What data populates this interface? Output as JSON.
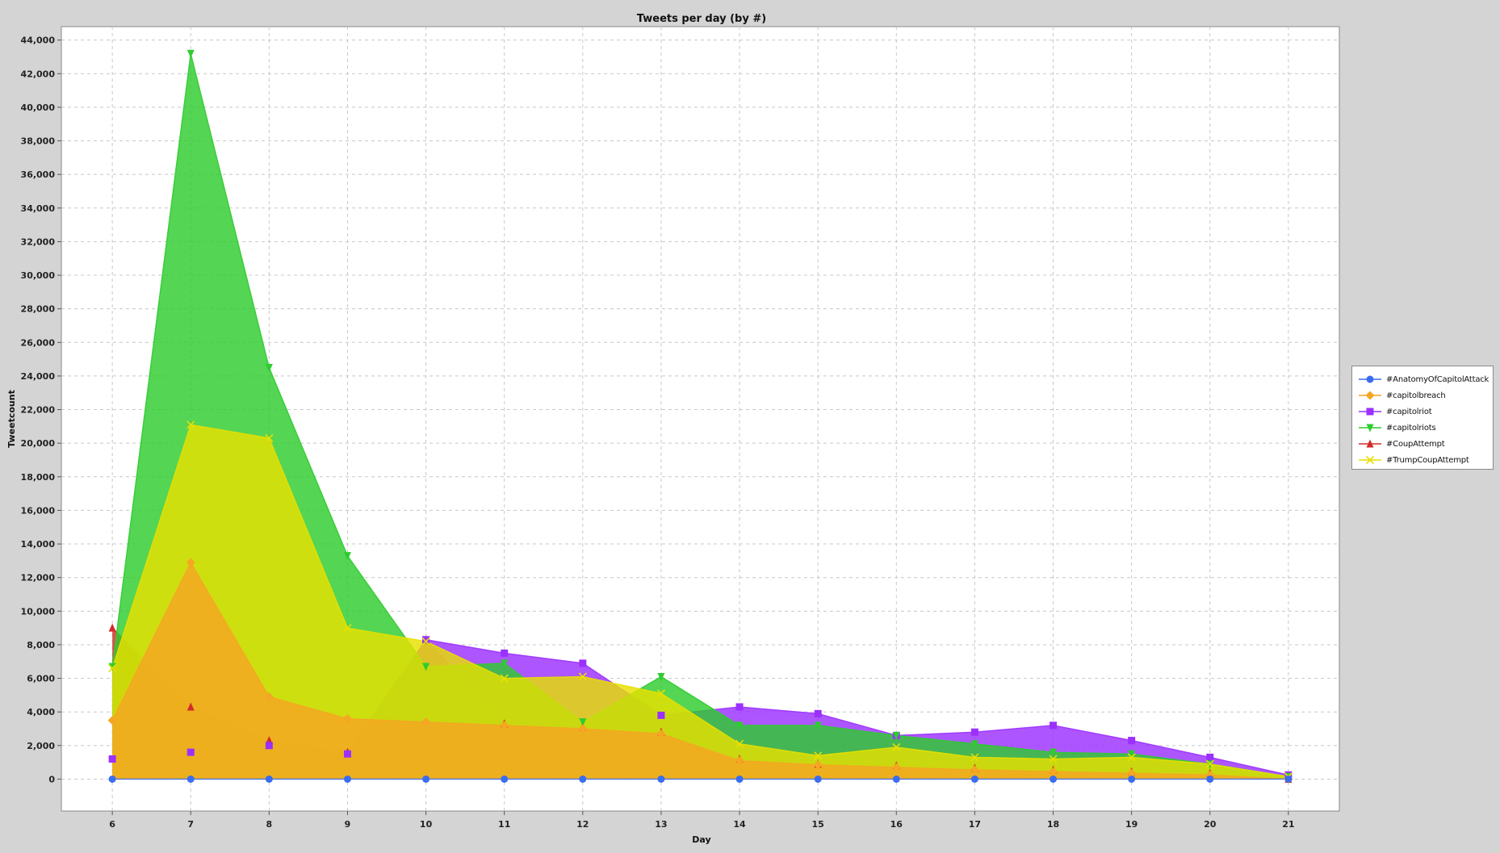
{
  "chart_data": {
    "type": "area",
    "title": "Tweets per day (by #)",
    "xlabel": "Day",
    "ylabel": "Tweetcount",
    "x": [
      6,
      7,
      8,
      9,
      10,
      11,
      12,
      13,
      14,
      15,
      16,
      17,
      18,
      19,
      20,
      21
    ],
    "xlim": [
      5.35,
      21.65
    ],
    "ylim": [
      -1900,
      44800
    ],
    "yticks": [
      0,
      2000,
      4000,
      6000,
      8000,
      10000,
      12000,
      14000,
      16000,
      18000,
      20000,
      22000,
      24000,
      26000,
      28000,
      30000,
      32000,
      34000,
      36000,
      38000,
      40000,
      42000,
      44000
    ],
    "ytick_labels": [
      "0",
      "2,000",
      "4,000",
      "6,000",
      "8,000",
      "10,000",
      "12,000",
      "14,000",
      "16,000",
      "18,000",
      "20,000",
      "22,000",
      "24,000",
      "26,000",
      "28,000",
      "30,000",
      "32,000",
      "34,000",
      "36,000",
      "38,000",
      "40,000",
      "42,000",
      "44,000"
    ],
    "xtick_labels": [
      "6",
      "7",
      "8",
      "9",
      "10",
      "11",
      "12",
      "13",
      "14",
      "15",
      "16",
      "17",
      "18",
      "19",
      "20",
      "21"
    ],
    "grid": true,
    "legend_position": "right",
    "series": [
      {
        "name": "#CoupAttempt",
        "color": "#d42a2a",
        "marker": "triangle-up",
        "values": [
          9000,
          4300,
          2300,
          1600,
          8300,
          3300,
          3100,
          2800,
          1200,
          900,
          800,
          650,
          550,
          450,
          350,
          0
        ]
      },
      {
        "name": "#capitolriot",
        "color": "#9b30ff",
        "marker": "square",
        "values": [
          1200,
          1600,
          2000,
          1500,
          8300,
          7500,
          6900,
          3800,
          4300,
          3900,
          2600,
          2800,
          3200,
          2300,
          1300,
          250
        ]
      },
      {
        "name": "#capitolriots",
        "color": "#2ecc2e",
        "marker": "triangle-down",
        "values": [
          6700,
          43200,
          24500,
          13300,
          6700,
          6900,
          3400,
          6100,
          3200,
          3200,
          2600,
          2100,
          1600,
          1500,
          900,
          150
        ]
      },
      {
        "name": "#TrumpCoupAttempt",
        "color": "#e8e000",
        "marker": "x",
        "values": [
          6600,
          21100,
          20300,
          9000,
          8200,
          6000,
          6100,
          5100,
          2100,
          1400,
          1900,
          1300,
          1200,
          1300,
          900,
          150
        ]
      },
      {
        "name": "#capitolbreach",
        "color": "#f5a623",
        "marker": "diamond",
        "values": [
          3500,
          12900,
          4900,
          3600,
          3400,
          3200,
          3000,
          2700,
          1100,
          850,
          700,
          550,
          450,
          350,
          250,
          0
        ]
      },
      {
        "name": "#AnatomyOfCapitolAttack",
        "color": "#3a6df0",
        "marker": "circle",
        "values": [
          0,
          0,
          0,
          0,
          0,
          0,
          0,
          0,
          0,
          0,
          0,
          0,
          0,
          0,
          0,
          0
        ]
      }
    ],
    "legend": [
      {
        "name": "#AnatomyOfCapitolAttack",
        "color": "#3a6df0",
        "marker": "circle"
      },
      {
        "name": "#capitolbreach",
        "color": "#f5a623",
        "marker": "diamond"
      },
      {
        "name": "#capitolriot",
        "color": "#9b30ff",
        "marker": "square"
      },
      {
        "name": "#capitolriots",
        "color": "#2ecc2e",
        "marker": "triangle-down"
      },
      {
        "name": "#CoupAttempt",
        "color": "#d42a2a",
        "marker": "triangle-up"
      },
      {
        "name": "#TrumpCoupAttempt",
        "color": "#e8e000",
        "marker": "x"
      }
    ]
  }
}
